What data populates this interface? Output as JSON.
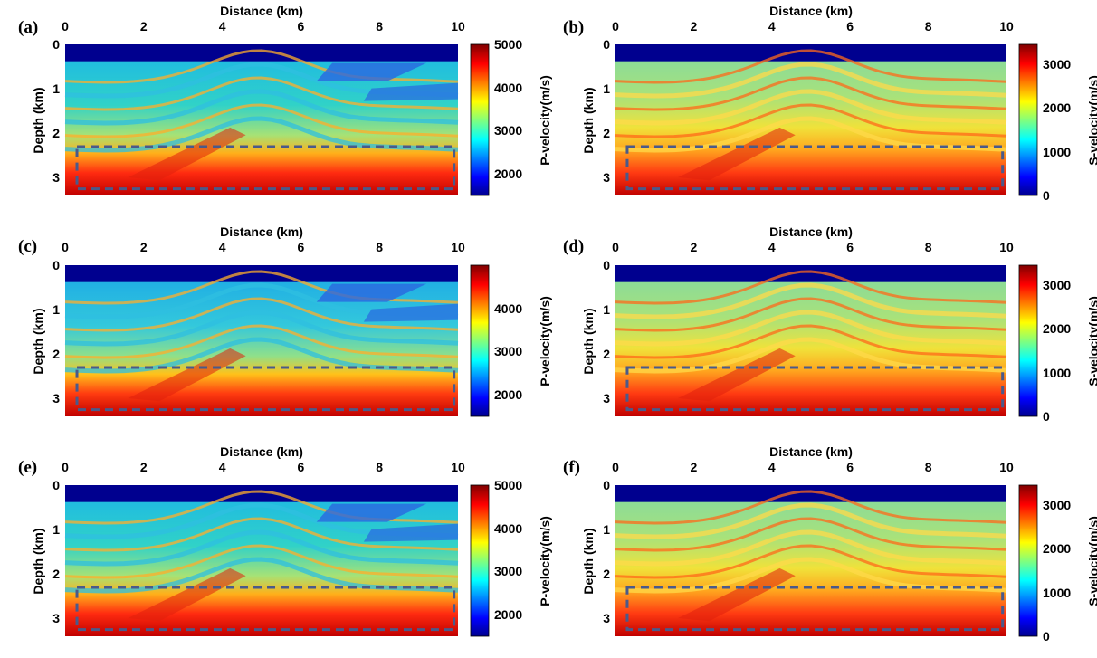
{
  "chart_data": [
    {
      "type": "heatmap",
      "panel_label": "(a)",
      "xlabel": "Distance (km)",
      "ylabel": "Depth (km)",
      "xlim": [
        0,
        10
      ],
      "ylim": [
        3.4,
        0
      ],
      "xticks": [
        "0",
        "2",
        "4",
        "6",
        "8",
        "10"
      ],
      "yticks": [
        "0",
        "1",
        "2",
        "3"
      ],
      "colorbar_label": "P-velocity(m/s)",
      "colorbar_ticks": [
        "5000",
        "4000",
        "3000",
        "2000"
      ],
      "colorbar_range": [
        1500,
        5000
      ],
      "dashed_box": {
        "x": [
          0.3,
          9.9
        ],
        "depth": [
          2.3,
          3.25
        ]
      }
    },
    {
      "type": "heatmap",
      "panel_label": "(b)",
      "xlabel": "Distance (km)",
      "ylabel": "Depth (km)",
      "xlim": [
        0,
        10
      ],
      "ylim": [
        3.4,
        0
      ],
      "xticks": [
        "0",
        "2",
        "4",
        "6",
        "8",
        "10"
      ],
      "yticks": [
        "0",
        "1",
        "2",
        "3"
      ],
      "colorbar_label": "S-velocity(m/s)",
      "colorbar_ticks": [
        "3000",
        "2000",
        "1000",
        "0"
      ],
      "colorbar_range": [
        0,
        3450
      ],
      "dashed_box": {
        "x": [
          0.3,
          9.9
        ],
        "depth": [
          2.3,
          3.25
        ]
      }
    },
    {
      "type": "heatmap",
      "panel_label": "(c)",
      "xlabel": "Distance (km)",
      "ylabel": "Depth (km)",
      "xlim": [
        0,
        10
      ],
      "ylim": [
        3.4,
        0
      ],
      "xticks": [
        "0",
        "2",
        "4",
        "6",
        "8",
        "10"
      ],
      "yticks": [
        "0",
        "1",
        "2",
        "3"
      ],
      "colorbar_label": "P-velocity(m/s)",
      "colorbar_ticks": [
        "4000",
        "3000",
        "2000"
      ],
      "colorbar_range": [
        1500,
        5000
      ],
      "dashed_box": {
        "x": [
          0.3,
          9.9
        ],
        "depth": [
          2.3,
          3.25
        ]
      }
    },
    {
      "type": "heatmap",
      "panel_label": "(d)",
      "xlabel": "Distance (km)",
      "ylabel": "Depth (km)",
      "xlim": [
        0,
        10
      ],
      "ylim": [
        3.4,
        0
      ],
      "xticks": [
        "0",
        "2",
        "4",
        "6",
        "8",
        "10"
      ],
      "yticks": [
        "0",
        "1",
        "2",
        "3"
      ],
      "colorbar_label": "S-velocity(m/s)",
      "colorbar_ticks": [
        "3000",
        "2000",
        "1000",
        "0"
      ],
      "colorbar_range": [
        0,
        3450
      ],
      "dashed_box": {
        "x": [
          0.3,
          9.9
        ],
        "depth": [
          2.3,
          3.25
        ]
      }
    },
    {
      "type": "heatmap",
      "panel_label": "(e)",
      "xlabel": "Distance (km)",
      "ylabel": "Depth (km)",
      "xlim": [
        0,
        10
      ],
      "ylim": [
        3.4,
        0
      ],
      "xticks": [
        "0",
        "2",
        "4",
        "6",
        "8",
        "10"
      ],
      "yticks": [
        "0",
        "1",
        "2",
        "3"
      ],
      "colorbar_label": "P-velocity(m/s)",
      "colorbar_ticks": [
        "5000",
        "4000",
        "3000",
        "2000"
      ],
      "colorbar_range": [
        1500,
        5000
      ],
      "dashed_box": {
        "x": [
          0.3,
          9.9
        ],
        "depth": [
          2.3,
          3.25
        ]
      }
    },
    {
      "type": "heatmap",
      "panel_label": "(f)",
      "xlabel": "Distance (km)",
      "ylabel": "Depth (km)",
      "xlim": [
        0,
        10
      ],
      "ylim": [
        3.4,
        0
      ],
      "xticks": [
        "0",
        "2",
        "4",
        "6",
        "8",
        "10"
      ],
      "yticks": [
        "0",
        "1",
        "2",
        "3"
      ],
      "colorbar_label": "S-velocity(m/s)",
      "colorbar_ticks": [
        "3000",
        "2000",
        "1000",
        "0"
      ],
      "colorbar_range": [
        0,
        3450
      ],
      "dashed_box": {
        "x": [
          0.3,
          9.9
        ],
        "depth": [
          2.3,
          3.25
        ]
      }
    }
  ],
  "colors": {
    "water": "#00008f",
    "dashed_box": "#4a5a8a",
    "colormap": [
      "#00008f",
      "#0000ff",
      "#00ffff",
      "#ffff00",
      "#ff0000",
      "#800000"
    ]
  }
}
